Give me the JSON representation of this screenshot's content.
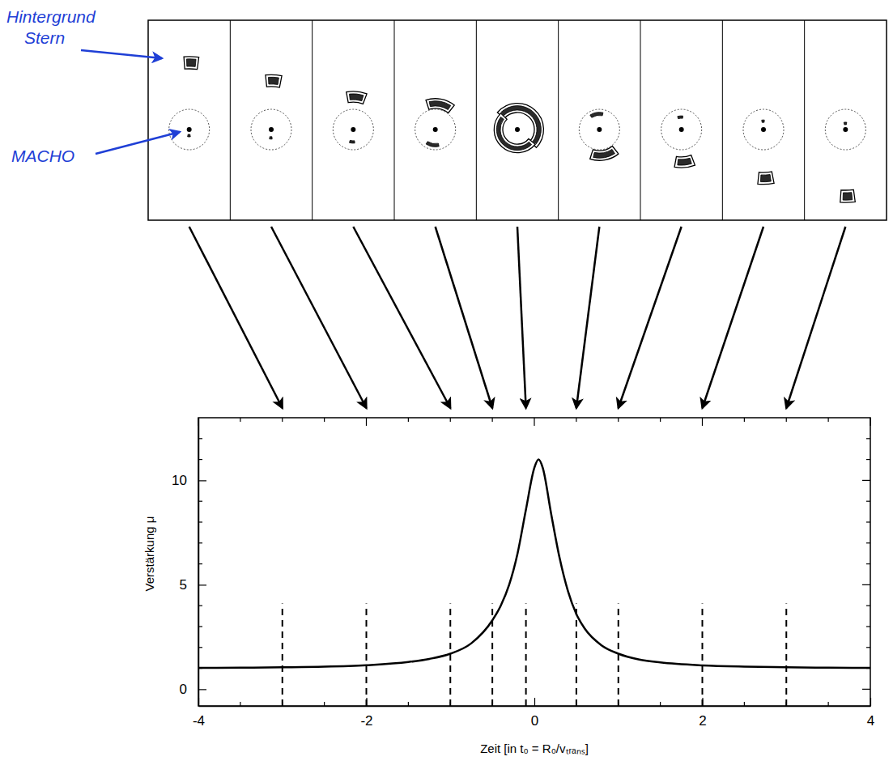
{
  "chart_data": {
    "type": "line",
    "x_label": "Zeit [in t₀ = R₀/vₜᵣₐₙₛ]",
    "y_label": "Verstärkung μ",
    "x": [
      -4,
      -3.5,
      -3,
      -2.5,
      -2,
      -1.5,
      -1.25,
      -1,
      -0.75,
      -0.5,
      -0.4,
      -0.3,
      -0.2,
      -0.1,
      0,
      0.05,
      0.1,
      0.2,
      0.3,
      0.4,
      0.5,
      0.6,
      0.8,
      1,
      1.25,
      1.5,
      2,
      2.5,
      3,
      3.5,
      4
    ],
    "values": [
      1.02,
      1.03,
      1.05,
      1.08,
      1.15,
      1.3,
      1.45,
      1.7,
      2.2,
      3.3,
      4.0,
      5.0,
      6.5,
      8.6,
      10.6,
      11.0,
      10.6,
      8.4,
      6.3,
      4.7,
      3.6,
      2.9,
      2.1,
      1.7,
      1.42,
      1.28,
      1.14,
      1.08,
      1.05,
      1.03,
      1.02
    ],
    "color": "#000000",
    "xlim": [
      -4,
      4
    ],
    "ylim": [
      -0.8,
      13
    ],
    "xticks": [
      -4,
      -2,
      0,
      2,
      4
    ],
    "yticks": [
      0,
      5,
      10
    ],
    "minor_xticks": [
      -3.5,
      -3,
      -2.5,
      -1.5,
      -1,
      -0.5,
      0.5,
      1,
      1.5,
      2.5,
      3,
      3.5
    ],
    "minor_yticks": [
      1,
      2,
      3,
      4,
      6,
      7,
      8,
      9,
      11,
      12
    ],
    "snapshot_times": [
      -3,
      -2,
      -1,
      -0.5,
      -0.1,
      0.5,
      1,
      2,
      3
    ],
    "annotations": [
      {
        "text": [
          "Hintergrund",
          "Stern"
        ]
      },
      {
        "text": [
          "MACHO"
        ]
      }
    ]
  }
}
